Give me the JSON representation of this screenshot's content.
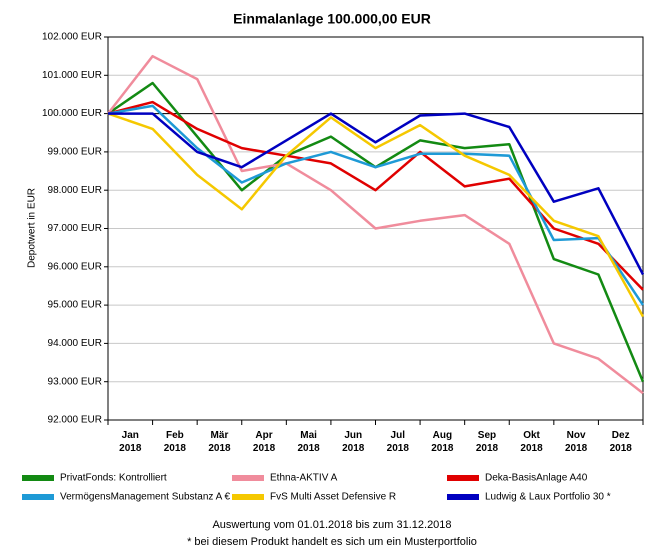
{
  "chart_data": {
    "type": "line",
    "title": "Einmalanlage 100.000,00 EUR",
    "y_label": "Depotwert in EUR",
    "categories": [
      "Jan 2018",
      "Feb 2018",
      "Mär 2018",
      "Apr 2018",
      "Mai 2018",
      "Jun 2018",
      "Jul 2018",
      "Aug 2018",
      "Sep 2018",
      "Okt 2018",
      "Nov 2018",
      "Dez 2018",
      null
    ],
    "series": [
      {
        "name": "PrivatFonds: Kontrolliert",
        "color": "#138a13",
        "values": [
          100000,
          100800,
          99400,
          98000,
          98900,
          99400,
          98600,
          99300,
          99100,
          99200,
          96200,
          95800,
          93000
        ]
      },
      {
        "name": "Ethna-AKTIV A",
        "color": "#f08c9c",
        "values": [
          100000,
          101500,
          100900,
          98500,
          98700,
          98000,
          97000,
          97200,
          97350,
          96600,
          94000,
          93600,
          92700
        ]
      },
      {
        "name": "Deka-BasisAnlage A40",
        "color": "#e00000",
        "values": [
          100000,
          100300,
          99600,
          99100,
          98900,
          98700,
          98000,
          99000,
          98100,
          98300,
          97000,
          96600,
          95400
        ]
      },
      {
        "name": "VermögensManagement Substanz A €",
        "color": "#1e9ad6",
        "values": [
          100000,
          100200,
          99100,
          98200,
          98700,
          99000,
          98600,
          98950,
          98950,
          98900,
          96700,
          96750,
          95000
        ]
      },
      {
        "name": "FvS Multi Asset Defensive R",
        "color": "#f5c800",
        "values": [
          100000,
          99600,
          98400,
          97500,
          98900,
          99900,
          99100,
          99700,
          98900,
          98400,
          97200,
          96800,
          94700
        ]
      },
      {
        "name": "Ludwig & Laux Portfolio 30 *",
        "color": "#0000c0",
        "values": [
          100000,
          100000,
          99000,
          98600,
          99300,
          100000,
          99250,
          99950,
          100000,
          99650,
          97700,
          98050,
          95800
        ]
      }
    ],
    "ylim": [
      92000,
      102000
    ],
    "yticks": [
      {
        "value": 92000,
        "label": "92.000 EUR"
      },
      {
        "value": 93000,
        "label": "93.000 EUR"
      },
      {
        "value": 94000,
        "label": "94.000 EUR"
      },
      {
        "value": 95000,
        "label": "95.000 EUR"
      },
      {
        "value": 96000,
        "label": "96.000 EUR"
      },
      {
        "value": 97000,
        "label": "97.000 EUR"
      },
      {
        "value": 98000,
        "label": "98.000 EUR"
      },
      {
        "value": 99000,
        "label": "99.000 EUR"
      },
      {
        "value": 100000,
        "label": "100.000 EUR"
      },
      {
        "value": 101000,
        "label": "101.000 EUR"
      },
      {
        "value": 102000,
        "label": "102.000 EUR"
      }
    ],
    "reference_line": 100000,
    "grid": true,
    "legend": "bottom",
    "footnotes": [
      "Auswertung vom 01.01.2018 bis zum 31.12.2018",
      "* bei diesem Produkt handelt es sich um ein Musterportfolio"
    ]
  }
}
